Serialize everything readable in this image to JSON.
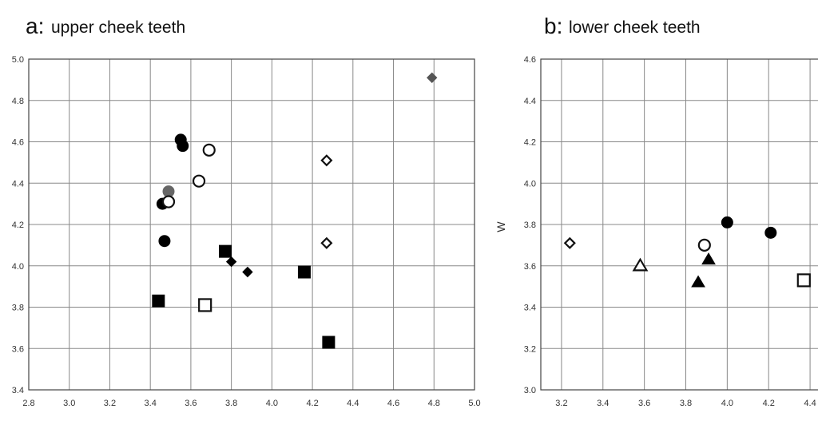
{
  "chart_data": [
    {
      "type": "scatter",
      "title_letter": "a:",
      "title": "upper cheek teeth",
      "xlabel": "",
      "ylabel": "",
      "xlim": [
        2.8,
        5.0
      ],
      "ylim": [
        3.4,
        5.0
      ],
      "x_ticks": [
        "2.8",
        "3.0",
        "3.2",
        "3.4",
        "3.6",
        "3.8",
        "4.0",
        "4.2",
        "4.4",
        "4.6",
        "4.8",
        "5.0"
      ],
      "y_ticks": [
        "3.4",
        "3.6",
        "3.8",
        "4.0",
        "4.2",
        "4.4",
        "4.6",
        "4.8",
        "5.0"
      ],
      "grid": true,
      "points": [
        {
          "marker": "circle",
          "fill": "#000000",
          "x": 3.55,
          "y": 4.61
        },
        {
          "marker": "circle",
          "fill": "#000000",
          "x": 3.56,
          "y": 4.58
        },
        {
          "marker": "circle",
          "fill": "#000000",
          "x": 3.46,
          "y": 4.3
        },
        {
          "marker": "circle",
          "fill": "#000000",
          "x": 3.47,
          "y": 4.12
        },
        {
          "marker": "circle",
          "fill": "#666666",
          "x": 3.49,
          "y": 4.36
        },
        {
          "marker": "circle-open",
          "fill": "#ffffff",
          "x": 3.69,
          "y": 4.56
        },
        {
          "marker": "circle-open",
          "fill": "#ffffff",
          "x": 3.64,
          "y": 4.41
        },
        {
          "marker": "circle-open",
          "fill": "#ffffff",
          "x": 3.49,
          "y": 4.31
        },
        {
          "marker": "square",
          "fill": "#000000",
          "x": 3.44,
          "y": 3.83
        },
        {
          "marker": "square",
          "fill": "#000000",
          "x": 3.77,
          "y": 4.07
        },
        {
          "marker": "square",
          "fill": "#000000",
          "x": 4.16,
          "y": 3.97
        },
        {
          "marker": "square",
          "fill": "#000000",
          "x": 4.28,
          "y": 3.63
        },
        {
          "marker": "square-open",
          "fill": "#ffffff",
          "x": 3.67,
          "y": 3.81
        },
        {
          "marker": "diamond",
          "fill": "#000000",
          "x": 3.8,
          "y": 4.02
        },
        {
          "marker": "diamond",
          "fill": "#000000",
          "x": 3.88,
          "y": 3.97
        },
        {
          "marker": "diamond",
          "fill": "#555555",
          "x": 4.79,
          "y": 4.91
        },
        {
          "marker": "diamond-open",
          "fill": "#ffffff",
          "x": 4.27,
          "y": 4.51
        },
        {
          "marker": "diamond-open",
          "fill": "#ffffff",
          "x": 4.27,
          "y": 4.11
        }
      ]
    },
    {
      "type": "scatter",
      "title_letter": "b:",
      "title": "lower cheek teeth",
      "xlabel": "",
      "ylabel": "W",
      "xlim": [
        3.1,
        4.5
      ],
      "ylim": [
        3.0,
        4.6
      ],
      "x_ticks": [
        "3.2",
        "3.4",
        "3.6",
        "3.8",
        "4.0",
        "4.2",
        "4.4"
      ],
      "y_ticks": [
        "3.0",
        "3.2",
        "3.4",
        "3.6",
        "3.8",
        "4.0",
        "4.2",
        "4.4",
        "4.6"
      ],
      "grid": true,
      "points": [
        {
          "marker": "diamond-open",
          "fill": "#ffffff",
          "x": 3.24,
          "y": 3.71
        },
        {
          "marker": "triangle-open",
          "fill": "#ffffff",
          "x": 3.58,
          "y": 3.6
        },
        {
          "marker": "circle-open",
          "fill": "#ffffff",
          "x": 3.89,
          "y": 3.7
        },
        {
          "marker": "circle",
          "fill": "#000000",
          "x": 4.0,
          "y": 3.81
        },
        {
          "marker": "circle",
          "fill": "#000000",
          "x": 4.21,
          "y": 3.76
        },
        {
          "marker": "triangle",
          "fill": "#000000",
          "x": 3.86,
          "y": 3.52
        },
        {
          "marker": "triangle",
          "fill": "#000000",
          "x": 3.91,
          "y": 3.63
        },
        {
          "marker": "square-open",
          "fill": "#ffffff",
          "x": 4.37,
          "y": 3.53
        }
      ]
    }
  ]
}
